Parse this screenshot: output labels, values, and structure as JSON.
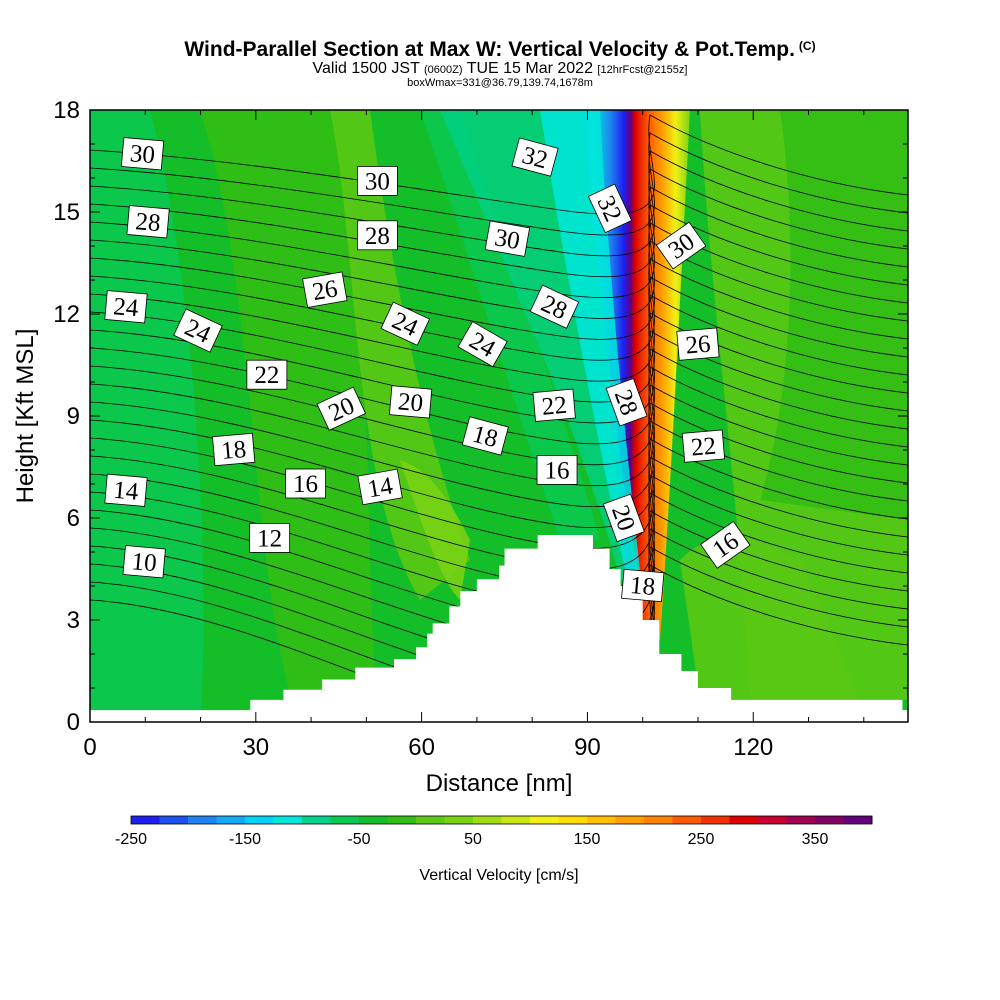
{
  "title": {
    "main": "Wind-Parallel Section at Max W: Vertical Velocity & Pot.Temp.",
    "copyright": "(C)",
    "valid_prefix": "Valid 1500 JST",
    "valid_utc": "(0600Z)",
    "valid_date": "TUE 15 Mar 2022",
    "forecast": "[12hrFcst@2155z]",
    "box_info": "boxWmax=331@36.79,139.74,1678m"
  },
  "colors": {
    "colorbar": [
      "#1e1ef0",
      "#1e50f0",
      "#1e82f0",
      "#14aaf5",
      "#00d2f5",
      "#00e6dc",
      "#00d28c",
      "#0ac850",
      "#14be28",
      "#32be14",
      "#5ac814",
      "#78d214",
      "#a0dc14",
      "#c8e614",
      "#f0f014",
      "#ffdc00",
      "#ffbe00",
      "#ffa000",
      "#ff8200",
      "#ff5a00",
      "#f03200",
      "#dc0000",
      "#c80032",
      "#a00050",
      "#820064",
      "#64007d"
    ],
    "terrain": "#ffffff",
    "contour": "#000000"
  },
  "chart_data": {
    "type": "heatmap",
    "xlabel": "Distance [nm]",
    "ylabel": "Height [Kft MSL]",
    "xlim": [
      0,
      148
    ],
    "ylim": [
      0,
      18
    ],
    "xticks": [
      0,
      30,
      60,
      90,
      120
    ],
    "yticks": [
      0,
      3,
      6,
      9,
      12,
      15,
      18
    ],
    "colorbar": {
      "label": "Vertical Velocity [cm/s]",
      "ticks": [
        -250,
        -150,
        -50,
        50,
        150,
        250,
        350
      ],
      "range": [
        -250,
        400
      ]
    },
    "terrain_profile": [
      [
        0,
        0.35
      ],
      [
        29,
        0.35
      ],
      [
        29,
        0.65
      ],
      [
        35,
        0.65
      ],
      [
        35,
        0.95
      ],
      [
        42,
        0.95
      ],
      [
        42,
        1.25
      ],
      [
        48,
        1.25
      ],
      [
        48,
        1.6
      ],
      [
        55,
        1.6
      ],
      [
        55,
        1.85
      ],
      [
        59,
        1.85
      ],
      [
        59,
        2.2
      ],
      [
        61,
        2.2
      ],
      [
        61,
        2.6
      ],
      [
        62,
        2.6
      ],
      [
        62,
        2.9
      ],
      [
        65,
        2.9
      ],
      [
        65,
        3.4
      ],
      [
        67,
        3.4
      ],
      [
        67,
        3.85
      ],
      [
        70,
        3.85
      ],
      [
        70,
        4.2
      ],
      [
        74,
        4.2
      ],
      [
        74,
        4.6
      ],
      [
        75,
        4.6
      ],
      [
        75,
        5.1
      ],
      [
        81,
        5.1
      ],
      [
        81,
        5.5
      ],
      [
        91,
        5.5
      ],
      [
        91,
        5.1
      ],
      [
        94,
        5.1
      ],
      [
        94,
        4.5
      ],
      [
        96,
        4.5
      ],
      [
        96,
        4.0
      ],
      [
        100,
        4.0
      ],
      [
        100,
        3.0
      ],
      [
        103,
        3.0
      ],
      [
        103,
        2.0
      ],
      [
        107,
        2.0
      ],
      [
        107,
        1.5
      ],
      [
        110,
        1.5
      ],
      [
        110,
        1.0
      ],
      [
        116,
        1.0
      ],
      [
        116,
        0.65
      ],
      [
        147,
        0.65
      ],
      [
        147,
        0.35
      ],
      [
        148,
        0.35
      ]
    ],
    "theta_labels": [
      {
        "v": "30",
        "x": 9.5,
        "y": 16.7,
        "rot": 5
      },
      {
        "v": "28",
        "x": 10.5,
        "y": 14.7,
        "rot": 5
      },
      {
        "v": "24",
        "x": 6.5,
        "y": 12.2,
        "rot": 5
      },
      {
        "v": "24",
        "x": 19.5,
        "y": 11.5,
        "rot": 25
      },
      {
        "v": "22",
        "x": 32,
        "y": 10.2,
        "rot": 0
      },
      {
        "v": "18",
        "x": 26,
        "y": 8.0,
        "rot": -5
      },
      {
        "v": "14",
        "x": 6.5,
        "y": 6.8,
        "rot": 5
      },
      {
        "v": "10",
        "x": 9.8,
        "y": 4.7,
        "rot": 5
      },
      {
        "v": "12",
        "x": 32.5,
        "y": 5.4,
        "rot": 0
      },
      {
        "v": "16",
        "x": 39,
        "y": 7.0,
        "rot": 0
      },
      {
        "v": "20",
        "x": 45.5,
        "y": 9.2,
        "rot": -25
      },
      {
        "v": "26",
        "x": 42.5,
        "y": 12.7,
        "rot": -10
      },
      {
        "v": "30",
        "x": 52,
        "y": 15.9,
        "rot": 0
      },
      {
        "v": "28",
        "x": 52,
        "y": 14.3,
        "rot": 0
      },
      {
        "v": "24",
        "x": 57,
        "y": 11.7,
        "rot": 25
      },
      {
        "v": "20",
        "x": 58,
        "y": 9.4,
        "rot": 5
      },
      {
        "v": "14",
        "x": 52.5,
        "y": 6.9,
        "rot": -10
      },
      {
        "v": "24",
        "x": 71,
        "y": 11.1,
        "rot": 30
      },
      {
        "v": "18",
        "x": 71.5,
        "y": 8.4,
        "rot": 15
      },
      {
        "v": "16",
        "x": 84.5,
        "y": 7.4,
        "rot": 0
      },
      {
        "v": "22",
        "x": 84,
        "y": 9.3,
        "rot": -5
      },
      {
        "v": "28",
        "x": 84,
        "y": 12.2,
        "rot": 25
      },
      {
        "v": "30",
        "x": 75.5,
        "y": 14.2,
        "rot": 10
      },
      {
        "v": "32",
        "x": 80.5,
        "y": 16.6,
        "rot": 15
      },
      {
        "v": "32",
        "x": 94,
        "y": 15.1,
        "rot": 65
      },
      {
        "v": "28",
        "x": 97,
        "y": 9.4,
        "rot": 70
      },
      {
        "v": "20",
        "x": 96.5,
        "y": 6.0,
        "rot": 70
      },
      {
        "v": "18",
        "x": 100,
        "y": 4.0,
        "rot": 5
      },
      {
        "v": "30",
        "x": 107,
        "y": 14.0,
        "rot": -35
      },
      {
        "v": "26",
        "x": 110,
        "y": 11.1,
        "rot": -5
      },
      {
        "v": "22",
        "x": 111,
        "y": 8.1,
        "rot": -5
      },
      {
        "v": "16",
        "x": 115,
        "y": 5.2,
        "rot": -35
      }
    ]
  }
}
